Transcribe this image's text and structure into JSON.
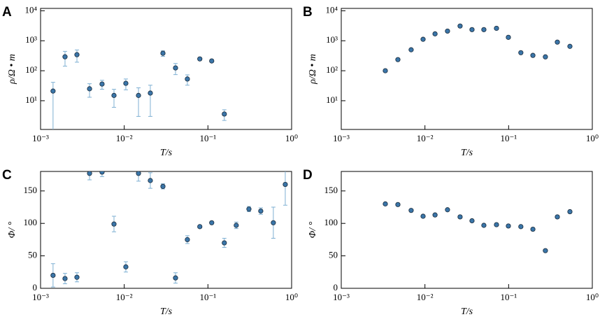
{
  "chart_data": [
    {
      "type": "scatter",
      "panel_label": "A",
      "xlabel": "T/s",
      "ylabel": "ρ/Ω • m",
      "log_x": true,
      "log_y": true,
      "color": "#3a75a8",
      "error_color": "#7fb0d3",
      "xlim": [
        0.001,
        1
      ],
      "ylim": [
        1.1,
        12000
      ],
      "xticks": [
        {
          "value": 0.001,
          "label": "10⁻³"
        },
        {
          "value": 0.01,
          "label": "10⁻²"
        },
        {
          "value": 0.1,
          "label": "10⁻¹"
        },
        {
          "value": 1,
          "label": "10⁰"
        }
      ],
      "yticks": [
        {
          "value": 10,
          "label": "10¹"
        },
        {
          "value": 100,
          "label": "10²"
        },
        {
          "value": 1000,
          "label": "10³"
        },
        {
          "value": 10000,
          "label": "10⁴"
        }
      ],
      "x": [
        0.00141,
        0.00196,
        0.00272,
        0.00385,
        0.00543,
        0.00754,
        0.01045,
        0.0148,
        0.0205,
        0.029,
        0.041,
        0.0568,
        0.08,
        0.111,
        0.157
      ],
      "values": [
        21,
        292,
        343,
        25,
        36,
        15,
        38,
        15,
        18,
        383,
        124,
        53,
        248,
        212,
        3.6
      ],
      "errors": [
        20,
        150,
        150,
        12,
        12,
        9,
        15,
        12,
        15,
        80,
        50,
        20,
        20,
        15,
        1.4
      ]
    },
    {
      "type": "scatter",
      "panel_label": "B",
      "xlabel": "T/s",
      "ylabel": "ρ/Ω • m",
      "log_x": true,
      "log_y": true,
      "color": "#3a75a8",
      "xlim": [
        0.001,
        1
      ],
      "ylim": [
        1.1,
        12000
      ],
      "xticks": [
        {
          "value": 0.001,
          "label": "10⁻³"
        },
        {
          "value": 0.01,
          "label": "10⁻²"
        },
        {
          "value": 0.1,
          "label": "10⁻¹"
        },
        {
          "value": 1,
          "label": "10⁰"
        }
      ],
      "yticks": [
        {
          "value": 10,
          "label": "10¹"
        },
        {
          "value": 100,
          "label": "10²"
        },
        {
          "value": 1000,
          "label": "10³"
        },
        {
          "value": 10000,
          "label": "10⁴"
        }
      ],
      "x": [
        0.00336,
        0.00475,
        0.00684,
        0.0095,
        0.0132,
        0.0186,
        0.0263,
        0.0365,
        0.0506,
        0.0716,
        0.0993,
        0.14,
        0.195,
        0.275,
        0.382,
        0.54
      ],
      "values": [
        100,
        235,
        500,
        1120,
        1700,
        2100,
        3100,
        2350,
        2350,
        2600,
        1300,
        400,
        325,
        290,
        900,
        650
      ]
    },
    {
      "type": "scatter",
      "panel_label": "C",
      "xlabel": "T/s",
      "ylabel": "Φ/ °",
      "log_x": true,
      "log_y": false,
      "color": "#3a75a8",
      "error_color": "#7fb0d3",
      "xlim": [
        0.001,
        1
      ],
      "ylim": [
        0,
        180
      ],
      "xticks": [
        {
          "value": 0.001,
          "label": "10⁻³"
        },
        {
          "value": 0.01,
          "label": "10⁻²"
        },
        {
          "value": 0.1,
          "label": "10⁻¹"
        },
        {
          "value": 1,
          "label": "10⁰"
        }
      ],
      "yticks": [
        0,
        50,
        100,
        150
      ],
      "x": [
        0.00141,
        0.00196,
        0.00272,
        0.00385,
        0.00543,
        0.00754,
        0.01045,
        0.0148,
        0.0205,
        0.029,
        0.041,
        0.0568,
        0.08,
        0.111,
        0.157,
        0.218,
        0.309,
        0.428,
        0.605,
        0.84
      ],
      "values": [
        20,
        15,
        17,
        177,
        179,
        99,
        33,
        177,
        166,
        157,
        16,
        75,
        95,
        101,
        70,
        97,
        122,
        119,
        101,
        160
      ],
      "errors": [
        18,
        8,
        7,
        10,
        7,
        12,
        8,
        12,
        12,
        4,
        8,
        6,
        2,
        1,
        7,
        5,
        4,
        5,
        24,
        32
      ]
    },
    {
      "type": "scatter",
      "panel_label": "D",
      "xlabel": "T/s",
      "ylabel": "Φ/ °",
      "log_x": true,
      "log_y": false,
      "color": "#3a75a8",
      "xlim": [
        0.001,
        1
      ],
      "ylim": [
        0,
        180
      ],
      "xticks": [
        {
          "value": 0.001,
          "label": "10⁻³"
        },
        {
          "value": 0.01,
          "label": "10⁻²"
        },
        {
          "value": 0.1,
          "label": "10⁻¹"
        },
        {
          "value": 1,
          "label": "10⁰"
        }
      ],
      "yticks": [
        0,
        50,
        100,
        150
      ],
      "x": [
        0.00336,
        0.00475,
        0.00684,
        0.0095,
        0.0132,
        0.0186,
        0.0263,
        0.0365,
        0.0506,
        0.0716,
        0.0993,
        0.14,
        0.195,
        0.275,
        0.382,
        0.54
      ],
      "values": [
        130,
        129,
        120,
        111,
        113,
        121,
        110,
        104,
        97,
        98,
        96,
        95,
        91,
        58,
        110,
        118
      ]
    }
  ]
}
